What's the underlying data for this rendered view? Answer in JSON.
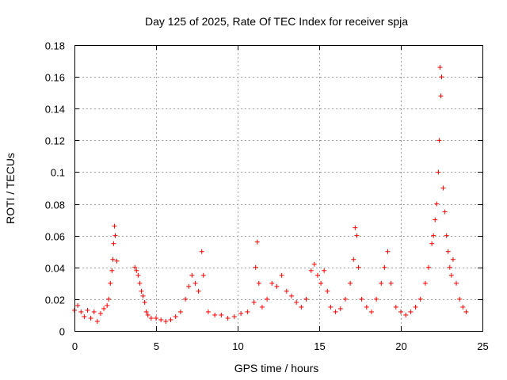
{
  "chart_data": {
    "type": "scatter",
    "title": "Day 125 of 2025, Rate Of TEC Index for receiver spja",
    "xlabel": "GPS time / hours",
    "ylabel": "ROTI / TECUs",
    "xlim": [
      0,
      25
    ],
    "ylim": [
      0,
      0.18
    ],
    "xticks": [
      0,
      5,
      10,
      15,
      20,
      25
    ],
    "xtick_labels": [
      "0",
      "5",
      "10",
      "15",
      "20",
      "25"
    ],
    "yticks": [
      0,
      0.02,
      0.04,
      0.06,
      0.08,
      0.1,
      0.12,
      0.14,
      0.16,
      0.18
    ],
    "ytick_labels": [
      "0",
      "0.02",
      "0.04",
      "0.06",
      "0.08",
      "0.1",
      "0.12",
      "0.14",
      "0.16",
      "0.18"
    ],
    "grid": true,
    "marker": "+",
    "color": "#ff0000",
    "series": [
      {
        "x": [
          0.0,
          0.2,
          0.4,
          0.6,
          0.8,
          1.0,
          1.2,
          1.4,
          1.6,
          1.8,
          2.0,
          2.1,
          2.2,
          2.3,
          2.35,
          2.4,
          2.45,
          2.5,
          2.6,
          3.7,
          3.8,
          3.9,
          4.0,
          4.1,
          4.2,
          4.3,
          4.4,
          4.5,
          4.7,
          5.0,
          5.3,
          5.6,
          5.9,
          6.2,
          6.5,
          6.8,
          7.0,
          7.2,
          7.4,
          7.6,
          7.8,
          7.9,
          8.2,
          8.6,
          9.0,
          9.4,
          9.8,
          10.2,
          10.6,
          11.0,
          11.1,
          11.2,
          11.3,
          11.5,
          11.8,
          12.1,
          12.4,
          12.7,
          13.0,
          13.3,
          13.6,
          13.9,
          14.2,
          14.5,
          14.7,
          14.9,
          15.1,
          15.3,
          15.5,
          15.7,
          16.0,
          16.3,
          16.6,
          16.9,
          17.1,
          17.2,
          17.3,
          17.4,
          17.6,
          17.9,
          18.2,
          18.5,
          18.8,
          19.0,
          19.2,
          19.4,
          19.7,
          20.0,
          20.3,
          20.6,
          20.9,
          21.2,
          21.5,
          21.7,
          21.9,
          22.0,
          22.1,
          22.2,
          22.3,
          22.35,
          22.4,
          22.45,
          22.5,
          22.6,
          22.7,
          22.8,
          22.9,
          23.0,
          23.1,
          23.2,
          23.4,
          23.6,
          23.8,
          24.0
        ],
        "y": [
          0.013,
          0.016,
          0.012,
          0.009,
          0.013,
          0.008,
          0.012,
          0.006,
          0.011,
          0.014,
          0.016,
          0.02,
          0.03,
          0.038,
          0.045,
          0.055,
          0.066,
          0.06,
          0.044,
          0.04,
          0.038,
          0.035,
          0.03,
          0.025,
          0.022,
          0.018,
          0.012,
          0.01,
          0.008,
          0.008,
          0.007,
          0.006,
          0.007,
          0.009,
          0.012,
          0.02,
          0.028,
          0.035,
          0.03,
          0.025,
          0.05,
          0.035,
          0.012,
          0.01,
          0.01,
          0.008,
          0.009,
          0.011,
          0.012,
          0.018,
          0.04,
          0.056,
          0.03,
          0.015,
          0.02,
          0.03,
          0.028,
          0.035,
          0.025,
          0.022,
          0.018,
          0.015,
          0.02,
          0.038,
          0.042,
          0.035,
          0.03,
          0.038,
          0.025,
          0.015,
          0.012,
          0.014,
          0.02,
          0.03,
          0.045,
          0.065,
          0.06,
          0.04,
          0.02,
          0.015,
          0.012,
          0.02,
          0.03,
          0.04,
          0.05,
          0.03,
          0.015,
          0.012,
          0.01,
          0.012,
          0.015,
          0.02,
          0.03,
          0.04,
          0.055,
          0.06,
          0.07,
          0.08,
          0.1,
          0.12,
          0.166,
          0.148,
          0.16,
          0.09,
          0.075,
          0.06,
          0.05,
          0.04,
          0.035,
          0.045,
          0.03,
          0.02,
          0.015,
          0.012
        ]
      }
    ]
  }
}
